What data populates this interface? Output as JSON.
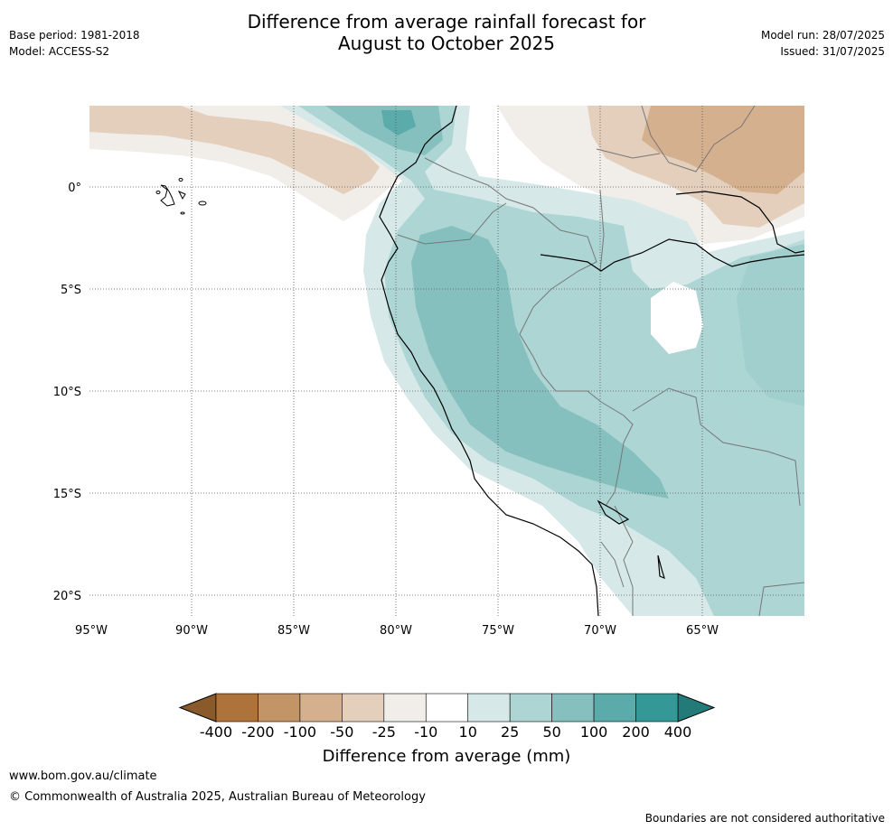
{
  "header": {
    "title_line1": "Difference from average rainfall forecast for",
    "title_line2": "August to October 2025",
    "base_period": "Base period: 1981-2018",
    "model": "Model: ACCESS-S2",
    "model_run": "Model run: 28/07/2025",
    "issued": "Issued: 31/07/2025"
  },
  "map": {
    "lon_labels": [
      "95°W",
      "90°W",
      "85°W",
      "80°W",
      "75°W",
      "70°W",
      "65°W"
    ],
    "lat_labels": [
      "0°",
      "5°S",
      "10°S",
      "15°S",
      "20°S"
    ],
    "lon_range": [
      -95,
      -60
    ],
    "lat_range": [
      -21,
      4
    ]
  },
  "colorbar": {
    "title": "Difference from average (mm)",
    "tick_labels": [
      "-400",
      "-200",
      "-100",
      "-50",
      "-25",
      "-10",
      "10",
      "25",
      "50",
      "100",
      "200",
      "400"
    ],
    "colors": [
      "#8a5a2b",
      "#ae733b",
      "#c39466",
      "#d4b08e",
      "#e3cfbc",
      "#f1ede8",
      "#ffffff",
      "#d6e9e8",
      "#acd5d4",
      "#85c0bf",
      "#5aabaa",
      "#339896",
      "#237b79"
    ]
  },
  "footer": {
    "website": "www.bom.gov.au/climate",
    "copyright": "© Commonwealth of Australia 2025, Australian Bureau of Meteorology",
    "disclaimer": "Boundaries are not considered authoritative"
  }
}
